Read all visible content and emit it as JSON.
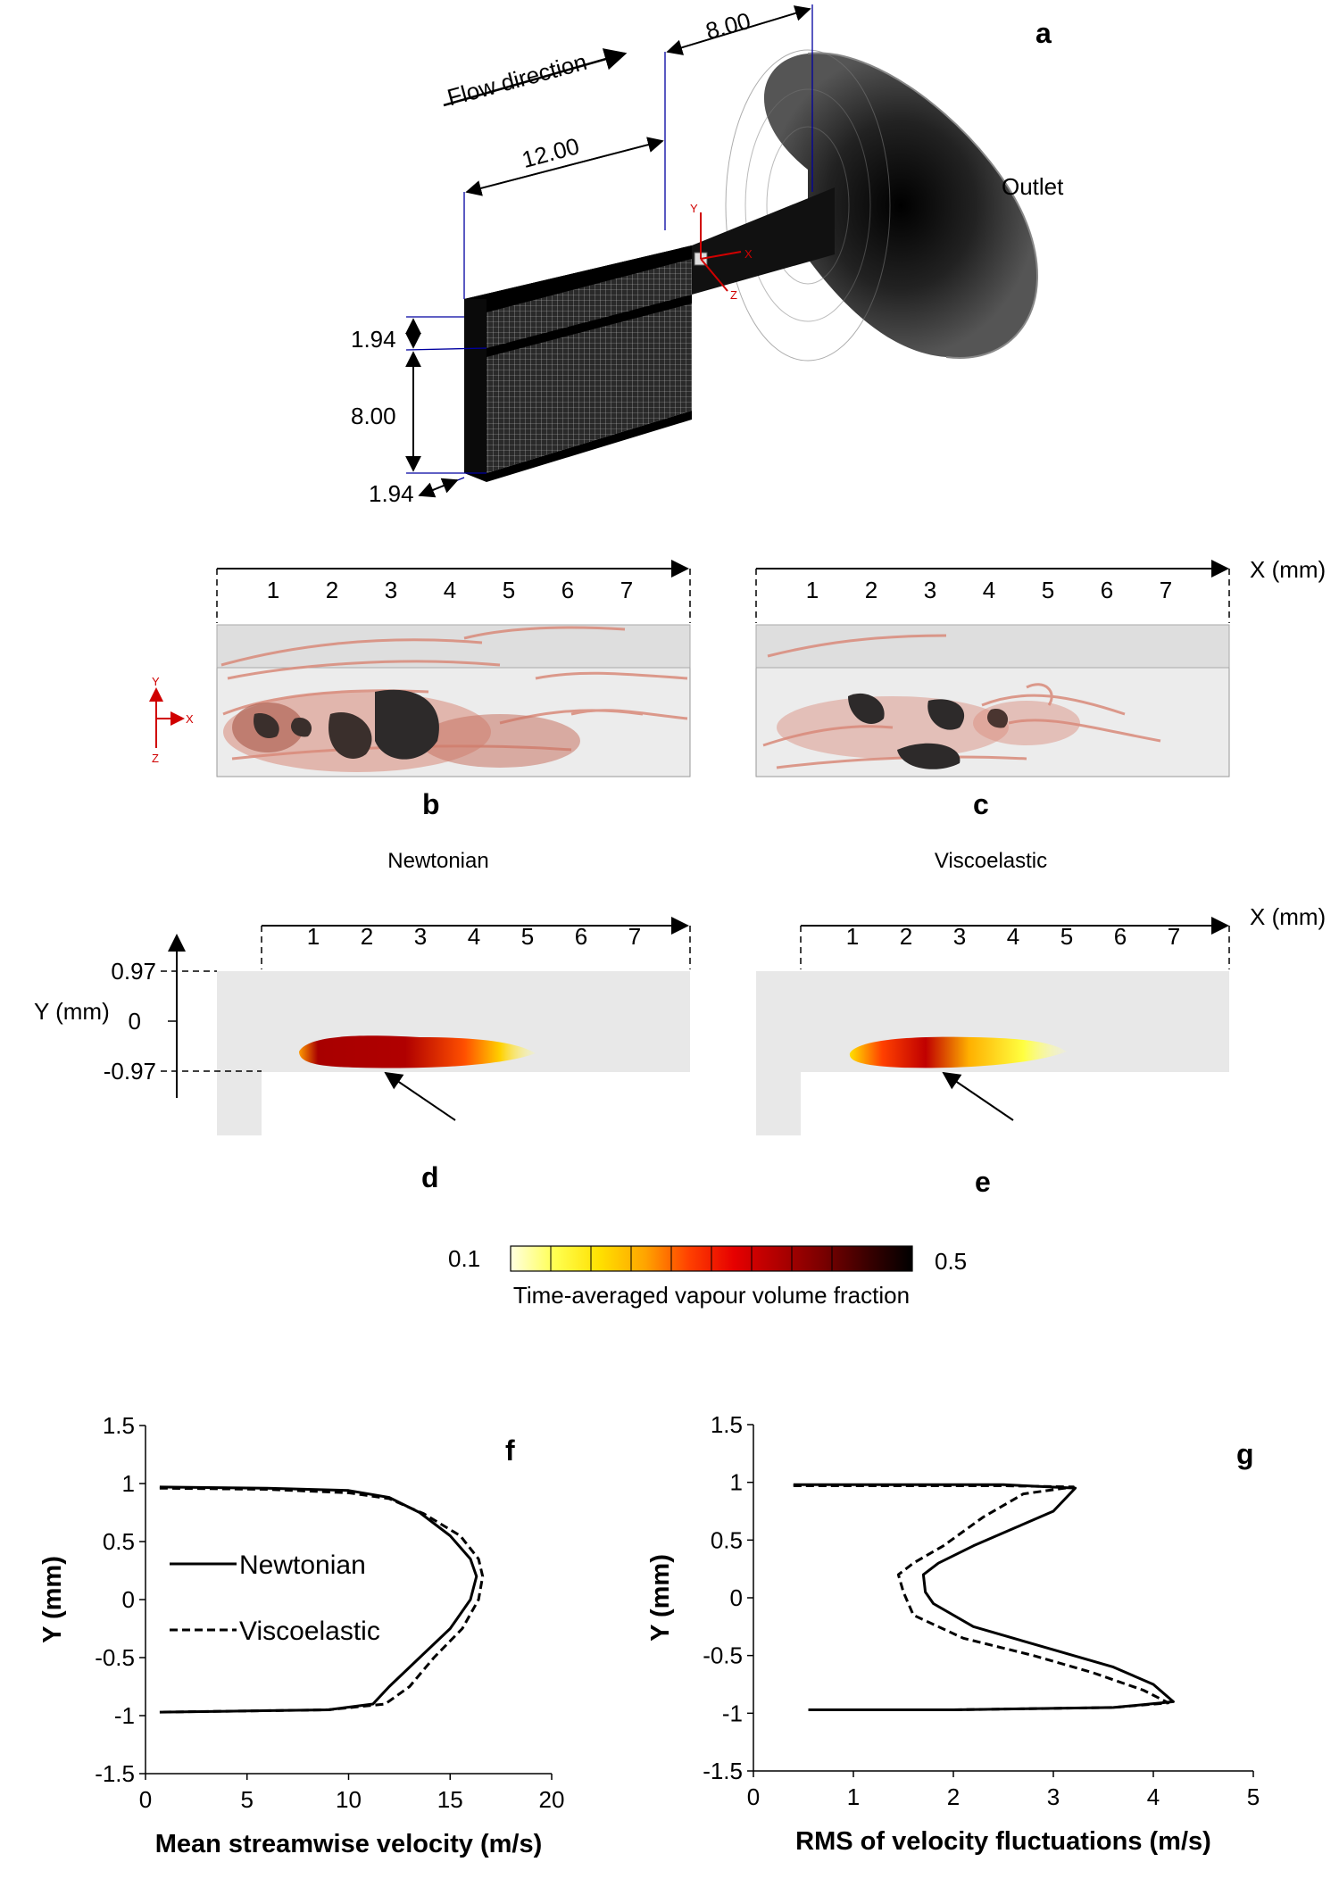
{
  "panel_a": {
    "letter": "a",
    "flow_label": "Flow direction",
    "dim_top": "8.00",
    "dim_mid": "12.00",
    "outlet_label": "Outlet",
    "dim_left_1": "1.94",
    "dim_left_2": "8.00",
    "dim_left_3": "1.94",
    "axis_y": "Y",
    "axis_x": "X",
    "axis_z": "Z"
  },
  "panel_bc": {
    "letter_b": "b",
    "letter_c": "c",
    "ticks": [
      "1",
      "2",
      "3",
      "4",
      "5",
      "6",
      "7"
    ],
    "x_axis_label": "X (mm)",
    "axis_y": "Y",
    "axis_x": "X",
    "axis_z": "Z",
    "title_left": "Newtonian",
    "title_right": "Viscoelastic"
  },
  "panel_de": {
    "letter_d": "d",
    "letter_e": "e",
    "ticks": [
      "1",
      "2",
      "3",
      "4",
      "5",
      "6",
      "7"
    ],
    "x_axis_label": "X (mm)",
    "y_axis_label": "Y (mm)",
    "y_ticks": [
      "0.97",
      "0",
      "-0.97"
    ]
  },
  "colorbar": {
    "min_label": "0.1",
    "max_label": "0.5",
    "caption": "Time-averaged vapour volume fraction",
    "colors": [
      "#ffffe0",
      "#ffff50",
      "#ffe000",
      "#ffa500",
      "#ff4000",
      "#e60000",
      "#b00000",
      "#7a0000",
      "#3a0000",
      "#000000"
    ]
  },
  "chart_data": [
    {
      "type": "line",
      "panel": "f",
      "xlabel": "Mean streamwise velocity (m/s)",
      "ylabel": "Y (mm)",
      "xlim": [
        0,
        20
      ],
      "ylim": [
        -1.5,
        1.5
      ],
      "x_ticks": [
        "0",
        "5",
        "10",
        "15",
        "20"
      ],
      "y_ticks": [
        "1.5",
        "1",
        "0.5",
        "0",
        "-0.5",
        "-1",
        "-1.5"
      ],
      "legend_position": "left",
      "series": [
        {
          "name": "Newtonian",
          "style": "solid",
          "points": [
            [
              0.7,
              0.97
            ],
            [
              6,
              0.96
            ],
            [
              10,
              0.94
            ],
            [
              12,
              0.88
            ],
            [
              13.5,
              0.75
            ],
            [
              15,
              0.55
            ],
            [
              16,
              0.35
            ],
            [
              16.3,
              0.2
            ],
            [
              16,
              0.0
            ],
            [
              15,
              -0.25
            ],
            [
              13.5,
              -0.5
            ],
            [
              12,
              -0.75
            ],
            [
              11.2,
              -0.9
            ],
            [
              9,
              -0.95
            ],
            [
              5,
              -0.96
            ],
            [
              0.7,
              -0.97
            ]
          ]
        },
        {
          "name": "Viscoelastic",
          "style": "dashed",
          "points": [
            [
              0.7,
              0.96
            ],
            [
              6,
              0.95
            ],
            [
              10,
              0.92
            ],
            [
              12,
              0.87
            ],
            [
              13.7,
              0.74
            ],
            [
              15.5,
              0.55
            ],
            [
              16.4,
              0.35
            ],
            [
              16.6,
              0.2
            ],
            [
              16.4,
              0.0
            ],
            [
              15.6,
              -0.25
            ],
            [
              14.2,
              -0.5
            ],
            [
              13,
              -0.75
            ],
            [
              11.8,
              -0.9
            ],
            [
              9,
              -0.95
            ],
            [
              5,
              -0.96
            ],
            [
              0.7,
              -0.97
            ]
          ]
        }
      ]
    },
    {
      "type": "line",
      "panel": "g",
      "xlabel": "RMS of velocity fluctuations (m/s)",
      "ylabel": "Y (mm)",
      "xlim": [
        0,
        5
      ],
      "ylim": [
        -1.5,
        1.5
      ],
      "x_ticks": [
        "0",
        "1",
        "2",
        "3",
        "4",
        "5"
      ],
      "y_ticks": [
        "1.5",
        "1",
        "0.5",
        "0",
        "-0.5",
        "-1",
        "-1.5"
      ],
      "series": [
        {
          "name": "Newtonian",
          "style": "solid",
          "points": [
            [
              0.4,
              0.98
            ],
            [
              2.5,
              0.98
            ],
            [
              3.22,
              0.95
            ],
            [
              3.0,
              0.75
            ],
            [
              2.6,
              0.6
            ],
            [
              2.2,
              0.45
            ],
            [
              1.85,
              0.3
            ],
            [
              1.7,
              0.2
            ],
            [
              1.72,
              0.05
            ],
            [
              1.8,
              -0.05
            ],
            [
              2.2,
              -0.25
            ],
            [
              3.0,
              -0.45
            ],
            [
              3.6,
              -0.6
            ],
            [
              4.0,
              -0.75
            ],
            [
              4.2,
              -0.9
            ],
            [
              3.6,
              -0.95
            ],
            [
              2,
              -0.97
            ],
            [
              0.55,
              -0.97
            ]
          ]
        },
        {
          "name": "Viscoelastic",
          "style": "dashed",
          "points": [
            [
              0.4,
              0.97
            ],
            [
              2.5,
              0.97
            ],
            [
              3.2,
              0.96
            ],
            [
              2.7,
              0.9
            ],
            [
              2.3,
              0.7
            ],
            [
              1.9,
              0.45
            ],
            [
              1.6,
              0.3
            ],
            [
              1.45,
              0.2
            ],
            [
              1.5,
              0.05
            ],
            [
              1.6,
              -0.15
            ],
            [
              2.1,
              -0.35
            ],
            [
              2.8,
              -0.5
            ],
            [
              3.4,
              -0.65
            ],
            [
              3.9,
              -0.8
            ],
            [
              4.15,
              -0.91
            ],
            [
              3.6,
              -0.95
            ],
            [
              2,
              -0.97
            ],
            [
              0.55,
              -0.97
            ]
          ]
        }
      ]
    }
  ],
  "panel_fg": {
    "letter_f": "f",
    "letter_g": "g",
    "legend_newtonian": "Newtonian",
    "legend_viscoelastic": "Viscoelastic"
  }
}
